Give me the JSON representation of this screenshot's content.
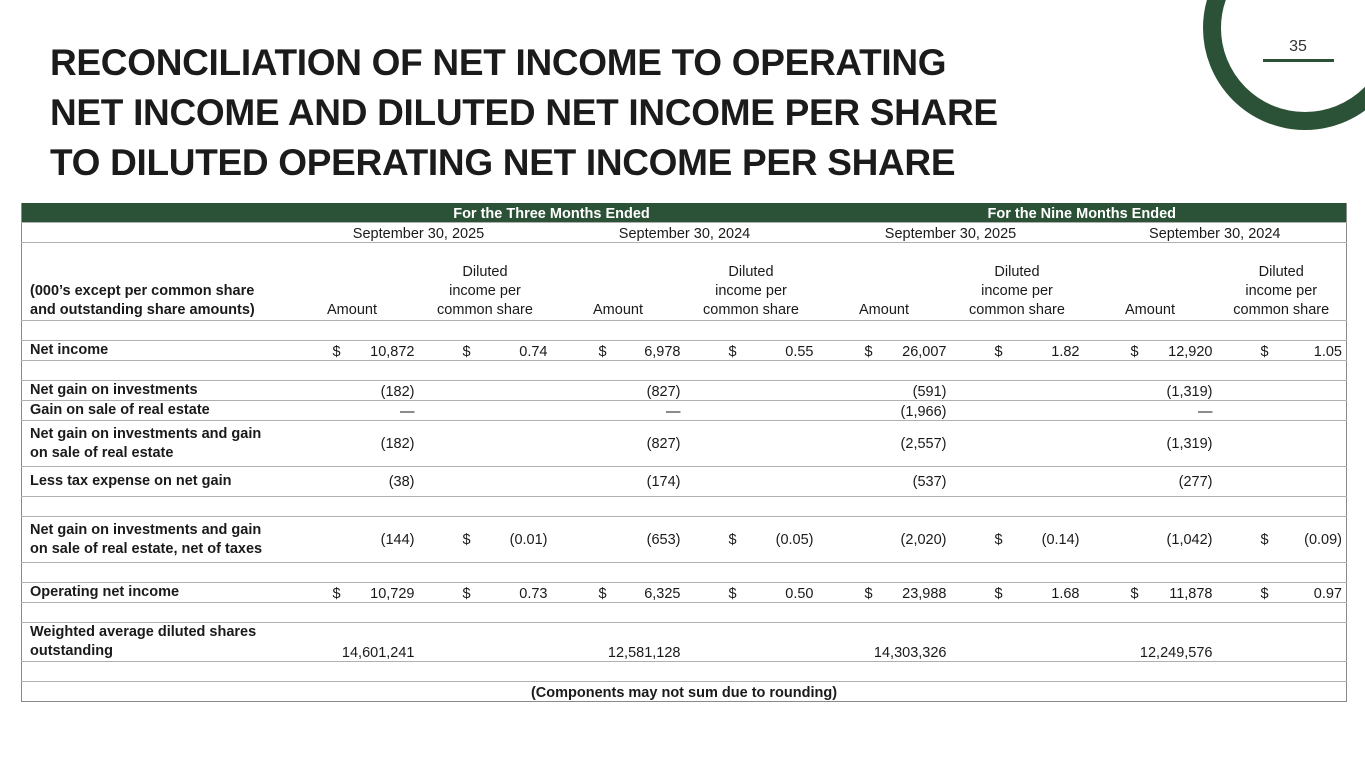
{
  "title_lines": [
    "RECONCILIATION OF NET INCOME TO OPERATING",
    "NET INCOME AND DILUTED NET INCOME PER SHARE",
    "TO DILUTED OPERATING NET INCOME PER SHARE"
  ],
  "page_number": "35",
  "brand_color": "#2b5236",
  "table": {
    "period_groups": [
      "For the Three Months Ended",
      "For the Nine Months Ended"
    ],
    "dates": [
      "September 30, 2025",
      "September 30, 2024",
      "September 30, 2025",
      "September 30, 2024"
    ],
    "label_header": "(000’s except per common share and outstanding share amounts)",
    "col_amount": "Amount",
    "col_diluted_lines": [
      "Diluted",
      "income per",
      "common share"
    ],
    "rows": [
      {
        "type": "blank"
      },
      {
        "label": "Net income",
        "cells": [
          [
            "$",
            "10,872"
          ],
          [
            "$",
            "0.74"
          ],
          [
            "$",
            "6,978"
          ],
          [
            "$",
            "0.55"
          ],
          [
            "$",
            "26,007"
          ],
          [
            "$",
            "1.82"
          ],
          [
            "$",
            "12,920"
          ],
          [
            "$",
            "1.05"
          ]
        ]
      },
      {
        "type": "blank"
      },
      {
        "label": "Net gain on investments",
        "cells": [
          [
            "",
            "(182)"
          ],
          [
            "",
            ""
          ],
          [
            "",
            "(827)"
          ],
          [
            "",
            ""
          ],
          [
            "",
            "(591)"
          ],
          [
            "",
            ""
          ],
          [
            "",
            "(1,319)"
          ],
          [
            "",
            ""
          ]
        ]
      },
      {
        "label": "Gain on sale of real estate",
        "cells": [
          [
            "",
            "—"
          ],
          [
            "",
            ""
          ],
          [
            "",
            "—"
          ],
          [
            "",
            ""
          ],
          [
            "",
            "(1,966)"
          ],
          [
            "",
            ""
          ],
          [
            "",
            "—"
          ],
          [
            "",
            ""
          ]
        ]
      },
      {
        "label": "Net gain on investments and gain on sale of real estate",
        "style": "tall",
        "cells": [
          [
            "",
            "(182)"
          ],
          [
            "",
            ""
          ],
          [
            "",
            "(827)"
          ],
          [
            "",
            ""
          ],
          [
            "",
            "(2,557)"
          ],
          [
            "",
            ""
          ],
          [
            "",
            "(1,319)"
          ],
          [
            "",
            ""
          ]
        ]
      },
      {
        "label": "Less tax expense on net gain",
        "style": "mid",
        "cells": [
          [
            "",
            "(38)"
          ],
          [
            "",
            ""
          ],
          [
            "",
            "(174)"
          ],
          [
            "",
            ""
          ],
          [
            "",
            "(537)"
          ],
          [
            "",
            ""
          ],
          [
            "",
            "(277)"
          ],
          [
            "",
            ""
          ]
        ]
      },
      {
        "type": "blank"
      },
      {
        "label": "Net gain on investments and gain on sale of real estate, net of taxes",
        "style": "tall",
        "cells": [
          [
            "",
            "(144)"
          ],
          [
            "$",
            "(0.01)"
          ],
          [
            "",
            "(653)"
          ],
          [
            "$",
            "(0.05)"
          ],
          [
            "",
            "(2,020)"
          ],
          [
            "$",
            "(0.14)"
          ],
          [
            "",
            "(1,042)"
          ],
          [
            "$",
            "(0.09)"
          ]
        ]
      },
      {
        "type": "blank"
      },
      {
        "label": "Operating net income",
        "cells": [
          [
            "$",
            "10,729"
          ],
          [
            "$",
            "0.73"
          ],
          [
            "$",
            "6,325"
          ],
          [
            "$",
            "0.50"
          ],
          [
            "$",
            "23,988"
          ],
          [
            "$",
            "1.68"
          ],
          [
            "$",
            "11,878"
          ],
          [
            "$",
            "0.97"
          ]
        ]
      },
      {
        "type": "blank"
      },
      {
        "label": "Weighted average diluted shares outstanding",
        "style": "tall2",
        "cells": [
          [
            "",
            "14,601,241"
          ],
          [
            "",
            ""
          ],
          [
            "",
            "12,581,128"
          ],
          [
            "",
            ""
          ],
          [
            "",
            "14,303,326"
          ],
          [
            "",
            ""
          ],
          [
            "",
            "12,249,576"
          ],
          [
            "",
            ""
          ]
        ]
      },
      {
        "type": "blank"
      }
    ],
    "footnote": "(Components may not sum due to rounding)"
  }
}
